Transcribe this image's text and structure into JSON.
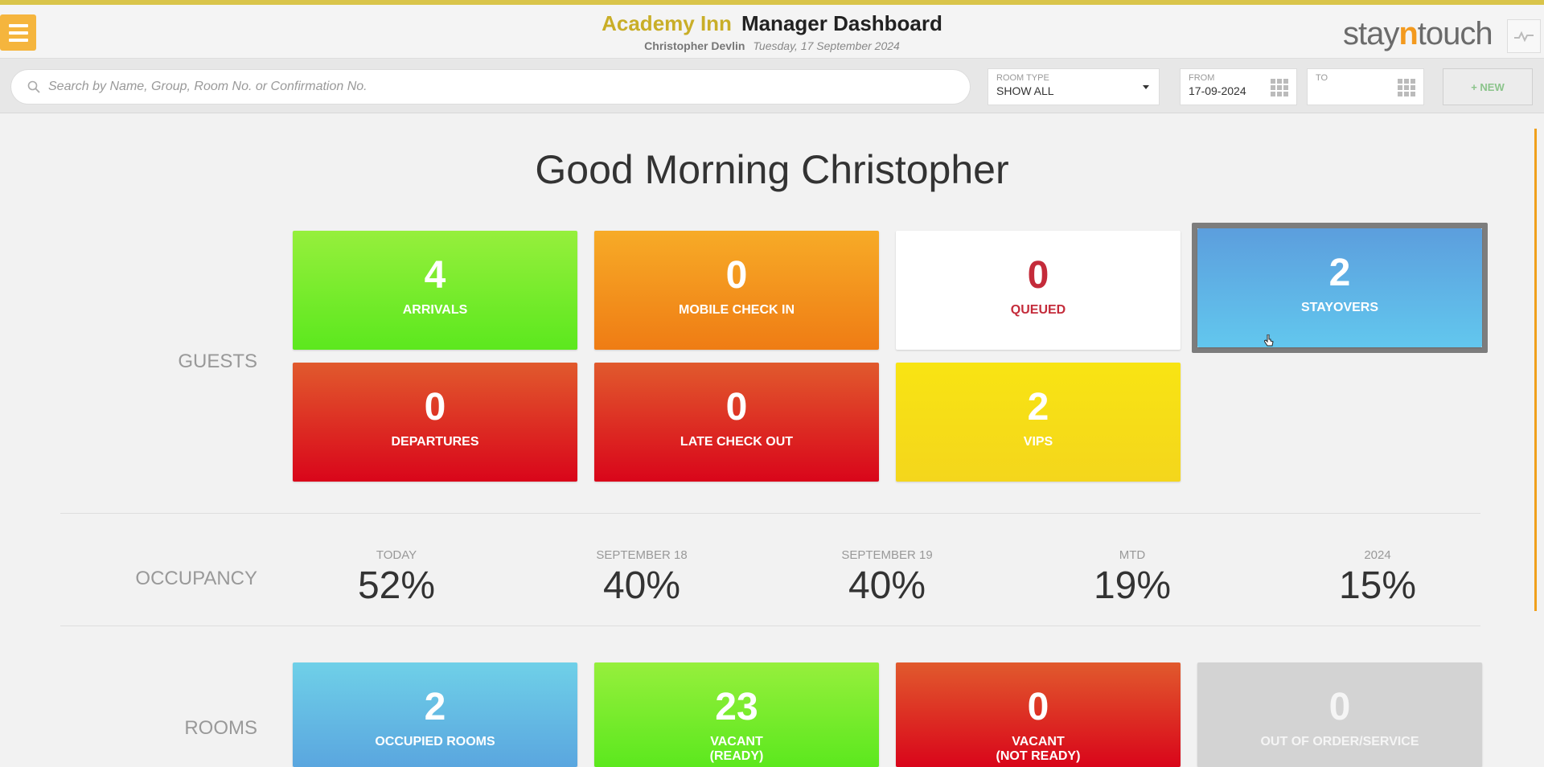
{
  "header": {
    "hotel_name": "Academy Inn",
    "dashboard_title": "Manager Dashboard",
    "user_name": "Christopher Devlin",
    "date": "Tuesday, 17 September 2024",
    "brand_pre": "stay",
    "brand_n": "n",
    "brand_post": "touch"
  },
  "search": {
    "placeholder": "Search by Name, Group, Room No. or Confirmation No."
  },
  "filters": {
    "room_type_label": "ROOM TYPE",
    "room_type_value": "SHOW ALL",
    "from_label": "FROM",
    "from_value": "17-09-2024",
    "to_label": "TO",
    "to_value": "",
    "new_label": "+ NEW"
  },
  "greeting": "Good Morning Christopher",
  "guests": {
    "label": "GUESTS",
    "tiles": [
      {
        "value": "4",
        "label": "ARRIVALS"
      },
      {
        "value": "0",
        "label": "MOBILE CHECK IN"
      },
      {
        "value": "0",
        "label": "QUEUED"
      },
      {
        "value": "2",
        "label": "STAYOVERS"
      },
      {
        "value": "0",
        "label": "DEPARTURES"
      },
      {
        "value": "0",
        "label": "LATE CHECK OUT"
      },
      {
        "value": "2",
        "label": "VIPS"
      }
    ]
  },
  "occupancy": {
    "label": "OCCUPANCY",
    "items": [
      {
        "label": "TODAY",
        "value": "52%"
      },
      {
        "label": "SEPTEMBER 18",
        "value": "40%"
      },
      {
        "label": "SEPTEMBER 19",
        "value": "40%"
      },
      {
        "label": "MTD",
        "value": "19%"
      },
      {
        "label": "2024",
        "value": "15%"
      }
    ]
  },
  "rooms": {
    "label": "ROOMS",
    "tiles": [
      {
        "value": "2",
        "label": "OCCUPIED ROOMS",
        "label2": ""
      },
      {
        "value": "23",
        "label": "VACANT",
        "label2": "(READY)"
      },
      {
        "value": "0",
        "label": "VACANT",
        "label2": "(NOT READY)"
      },
      {
        "value": "0",
        "label": "OUT OF ORDER/SERVICE",
        "label2": ""
      }
    ]
  }
}
